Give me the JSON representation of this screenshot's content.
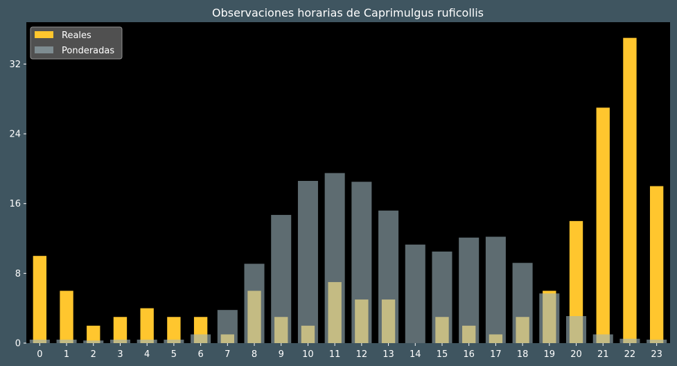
{
  "chart_data": {
    "type": "bar",
    "title": "Observaciones horarias de Caprimulgus ruficollis",
    "xlabel": "",
    "ylabel": "",
    "categories": [
      "0",
      "1",
      "2",
      "3",
      "4",
      "5",
      "6",
      "7",
      "8",
      "9",
      "10",
      "11",
      "12",
      "13",
      "14",
      "15",
      "16",
      "17",
      "18",
      "19",
      "20",
      "21",
      "22",
      "23"
    ],
    "ylim": [
      0,
      36.8
    ],
    "yticks": [
      0,
      8,
      16,
      24,
      32
    ],
    "legend_position": "top-left",
    "series": [
      {
        "name": "Reales",
        "color": "#ffc62e",
        "values": [
          10,
          6,
          2,
          3,
          4,
          3,
          3,
          1,
          6,
          3,
          2,
          7,
          5,
          5,
          0,
          3,
          2,
          1,
          3,
          6,
          14,
          27,
          35,
          18
        ]
      },
      {
        "name": "Ponderadas",
        "color": "#9db4bd",
        "values": [
          0.4,
          0.4,
          0.3,
          0.4,
          0.4,
          0.4,
          1.0,
          3.8,
          9.1,
          14.7,
          18.6,
          19.5,
          18.5,
          15.2,
          11.3,
          10.5,
          12.1,
          12.2,
          9.2,
          5.7,
          3.1,
          1.0,
          0.5,
          0.4
        ]
      }
    ]
  }
}
